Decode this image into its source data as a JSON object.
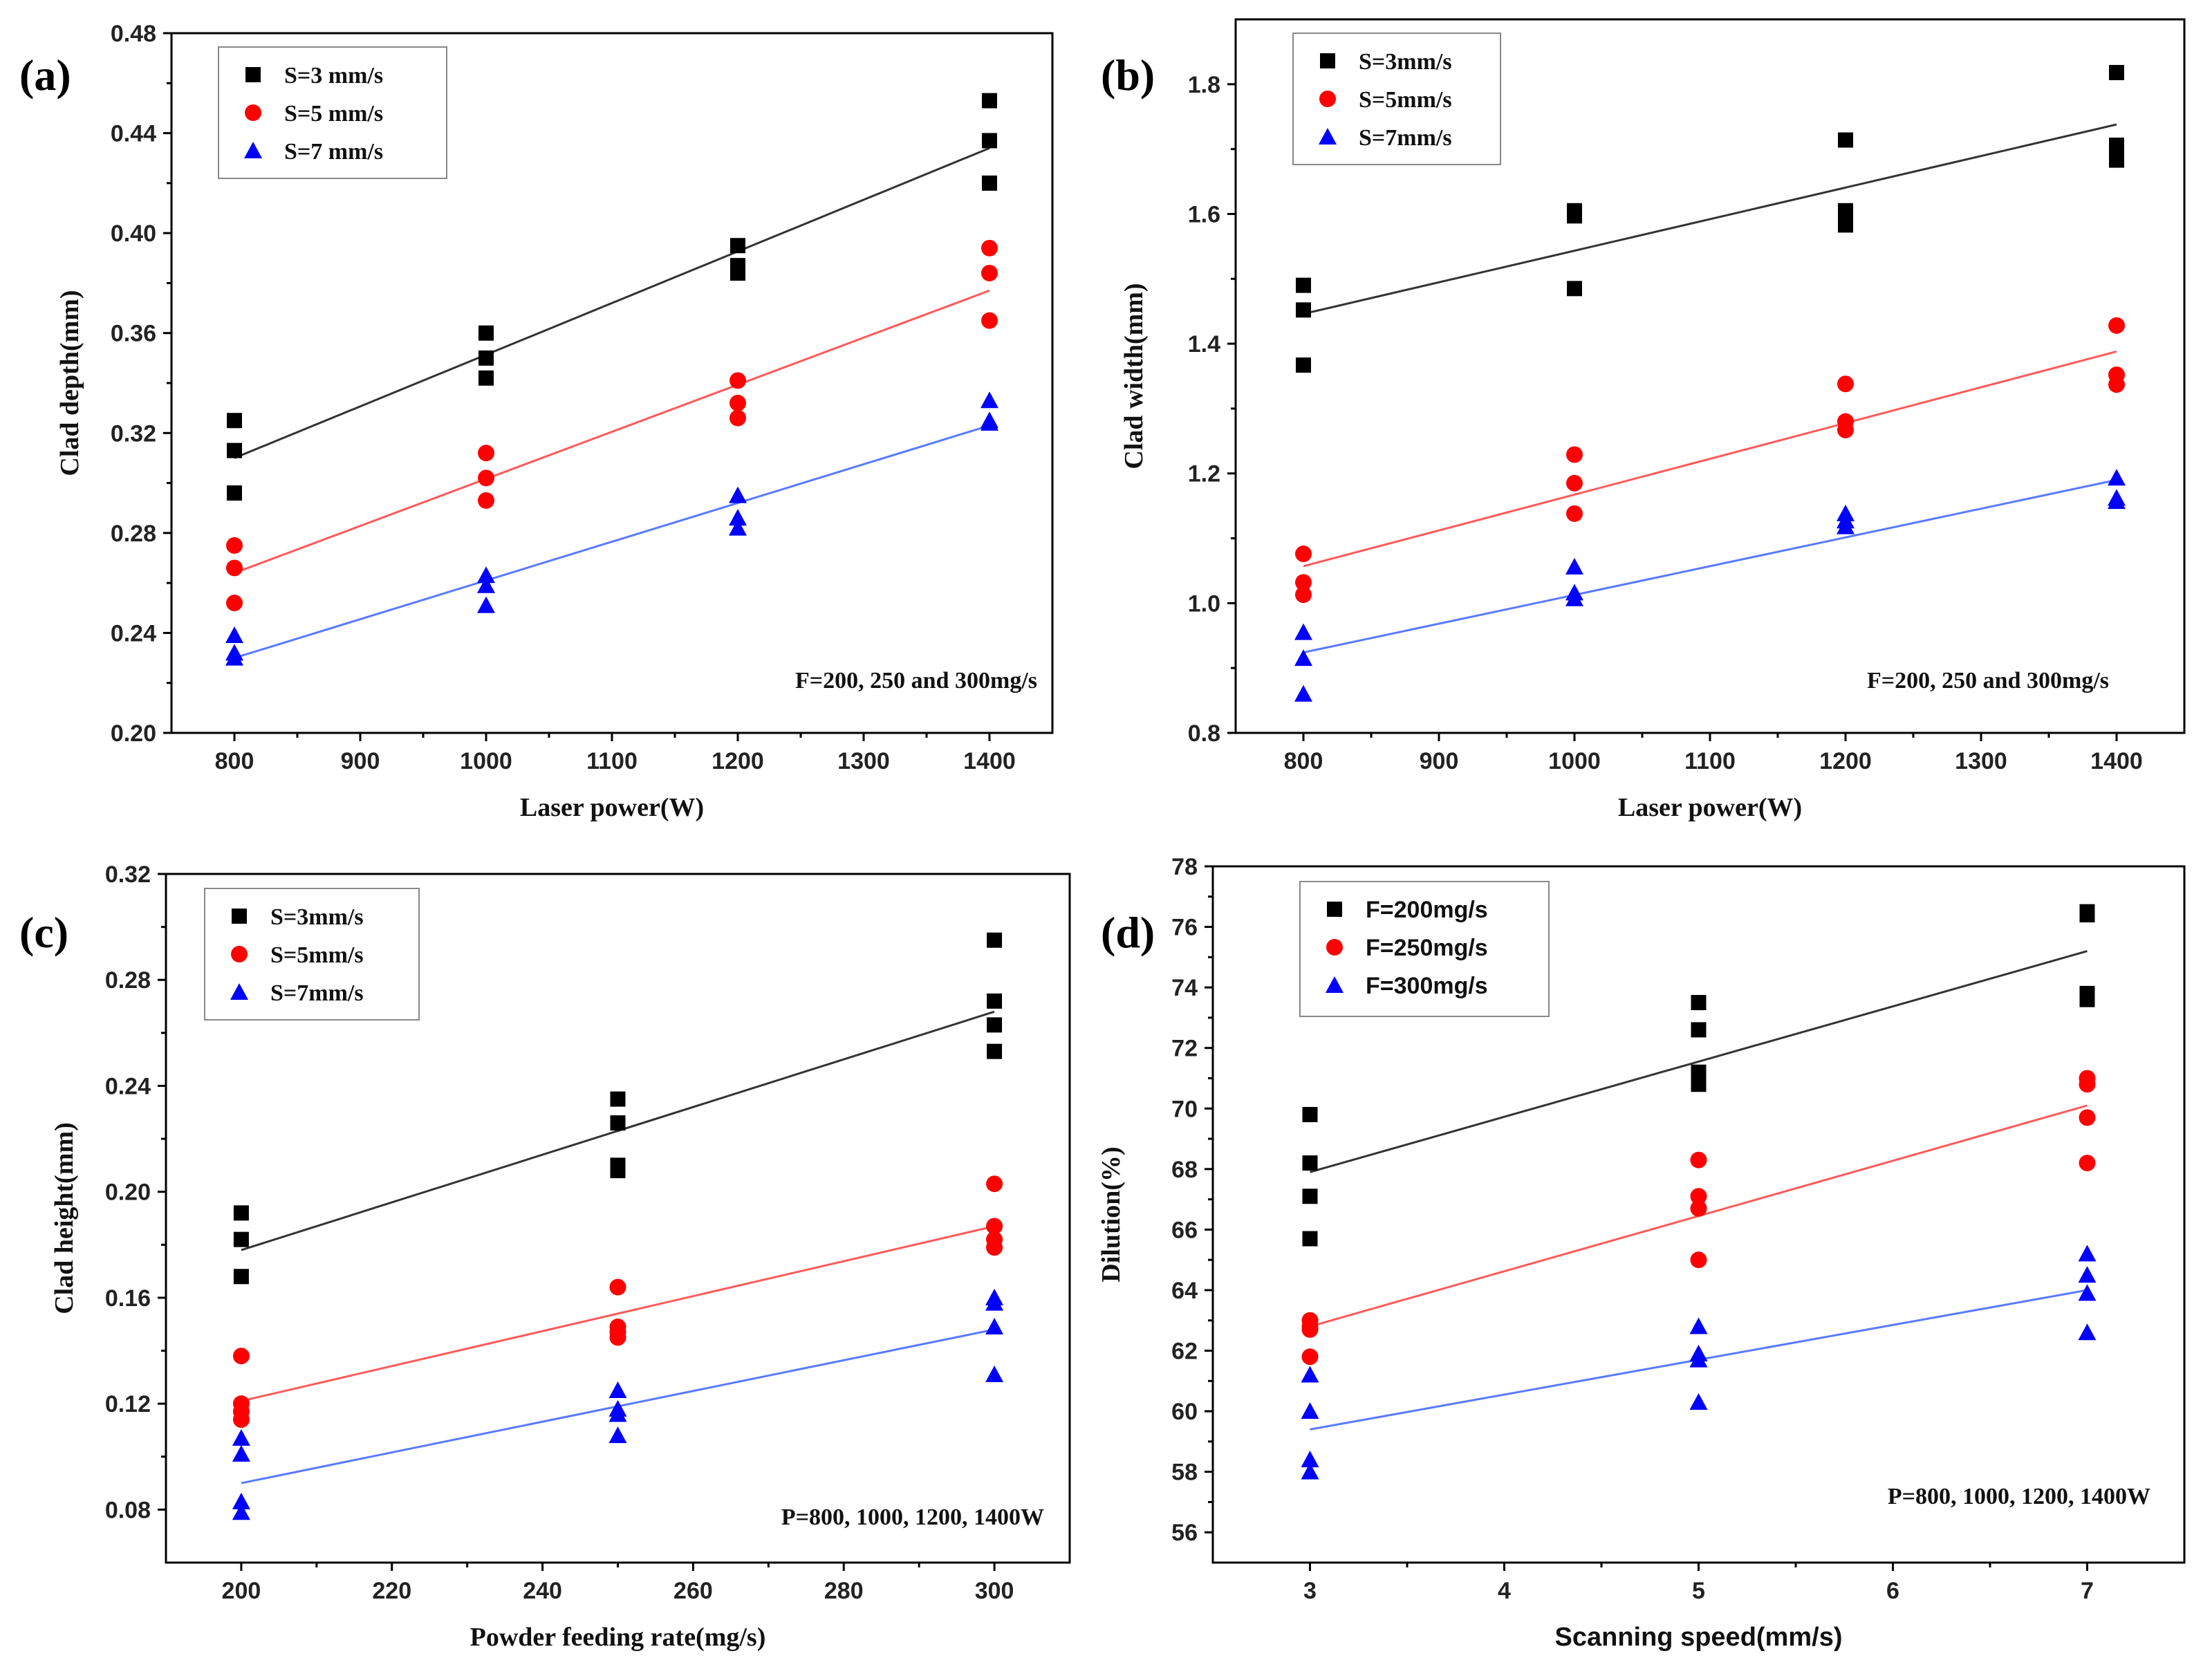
{
  "colors": {
    "s1": "#000000",
    "s2": "#ff0000",
    "s3": "#0000ff",
    "fit1": "#333333",
    "fit2": "#ff5a5a",
    "fit3": "#5a7aff"
  },
  "chart_data": [
    {
      "type": "scatter",
      "panel": "(a)",
      "xlabel": "Laser power(W)",
      "ylabel": "Clad depth(mm)",
      "xlim": [
        750,
        1450
      ],
      "ylim": [
        0.2,
        0.48
      ],
      "xticks": [
        800,
        900,
        1000,
        1100,
        1200,
        1300,
        1400
      ],
      "yticks": [
        0.2,
        0.24,
        0.28,
        0.32,
        0.36,
        0.4,
        0.44,
        0.48
      ],
      "ytick_decimals": 2,
      "annotation": "F=200, 250 and 300mg/s",
      "legend_position": "top-left",
      "series": [
        {
          "name": "S=3 mm/s",
          "marker": "square",
          "points": [
            [
              800,
              0.325
            ],
            [
              800,
              0.313
            ],
            [
              800,
              0.296
            ],
            [
              1000,
              0.36
            ],
            [
              1000,
              0.35
            ],
            [
              1000,
              0.342
            ],
            [
              1200,
              0.395
            ],
            [
              1200,
              0.387
            ],
            [
              1200,
              0.384
            ],
            [
              1400,
              0.453
            ],
            [
              1400,
              0.437
            ],
            [
              1400,
              0.42
            ]
          ],
          "fit": [
            [
              800,
              0.31
            ],
            [
              1400,
              0.434
            ]
          ]
        },
        {
          "name": "S=5 mm/s",
          "marker": "circle",
          "points": [
            [
              800,
              0.275
            ],
            [
              800,
              0.266
            ],
            [
              800,
              0.252
            ],
            [
              1000,
              0.312
            ],
            [
              1000,
              0.302
            ],
            [
              1000,
              0.293
            ],
            [
              1200,
              0.341
            ],
            [
              1200,
              0.332
            ],
            [
              1200,
              0.326
            ],
            [
              1400,
              0.394
            ],
            [
              1400,
              0.384
            ],
            [
              1400,
              0.365
            ]
          ],
          "fit": [
            [
              800,
              0.264
            ],
            [
              1400,
              0.377
            ]
          ]
        },
        {
          "name": "S=7 mm/s",
          "marker": "triangle",
          "points": [
            [
              800,
              0.239
            ],
            [
              800,
              0.232
            ],
            [
              800,
              0.23
            ],
            [
              1000,
              0.263
            ],
            [
              1000,
              0.259
            ],
            [
              1000,
              0.251
            ],
            [
              1200,
              0.295
            ],
            [
              1200,
              0.286
            ],
            [
              1200,
              0.282
            ],
            [
              1400,
              0.333
            ],
            [
              1400,
              0.325
            ],
            [
              1400,
              0.324
            ]
          ],
          "fit": [
            [
              800,
              0.23
            ],
            [
              1400,
              0.323
            ]
          ]
        }
      ]
    },
    {
      "type": "scatter",
      "panel": "(b)",
      "xlabel": "Laser power(W)",
      "ylabel": "Clad width(mm)",
      "xlim": [
        750,
        1450
      ],
      "ylim": [
        0.8,
        1.9
      ],
      "xticks": [
        800,
        900,
        1000,
        1100,
        1200,
        1300,
        1400
      ],
      "yticks": [
        0.8,
        1.0,
        1.2,
        1.4,
        1.6,
        1.8
      ],
      "ytick_decimals": 1,
      "annotation": "F=200, 250 and 300mg/s",
      "legend_position": "top-left",
      "series": [
        {
          "name": "S=3mm/s",
          "marker": "square",
          "points": [
            [
              800,
              1.49
            ],
            [
              800,
              1.452
            ],
            [
              800,
              1.367
            ],
            [
              1000,
              1.605
            ],
            [
              1000,
              1.597
            ],
            [
              1000,
              1.485
            ],
            [
              1200,
              1.714
            ],
            [
              1200,
              1.605
            ],
            [
              1200,
              1.583
            ],
            [
              1400,
              1.818
            ],
            [
              1400,
              1.706
            ],
            [
              1400,
              1.683
            ]
          ],
          "fit": [
            [
              800,
              1.446
            ],
            [
              1400,
              1.738
            ]
          ]
        },
        {
          "name": "S=5mm/s",
          "marker": "circle",
          "points": [
            [
              800,
              1.076
            ],
            [
              800,
              1.032
            ],
            [
              800,
              1.013
            ],
            [
              1000,
              1.229
            ],
            [
              1000,
              1.185
            ],
            [
              1000,
              1.138
            ],
            [
              1200,
              1.338
            ],
            [
              1200,
              1.28
            ],
            [
              1200,
              1.267
            ],
            [
              1400,
              1.428
            ],
            [
              1400,
              1.352
            ],
            [
              1400,
              1.337
            ]
          ],
          "fit": [
            [
              800,
              1.057
            ],
            [
              1400,
              1.388
            ]
          ]
        },
        {
          "name": "S=7mm/s",
          "marker": "triangle",
          "points": [
            [
              800,
              0.955
            ],
            [
              800,
              0.915
            ],
            [
              800,
              0.86
            ],
            [
              1000,
              1.056
            ],
            [
              1000,
              1.016
            ],
            [
              1000,
              1.007
            ],
            [
              1200,
              1.138
            ],
            [
              1200,
              1.127
            ],
            [
              1200,
              1.118
            ],
            [
              1400,
              1.193
            ],
            [
              1400,
              1.162
            ],
            [
              1400,
              1.157
            ]
          ],
          "fit": [
            [
              800,
              0.924
            ],
            [
              1400,
              1.19
            ]
          ]
        }
      ]
    },
    {
      "type": "scatter",
      "panel": "(c)",
      "xlabel": "Powder feeding rate(mg/s)",
      "ylabel": "Clad height(mm)",
      "xlim": [
        190,
        310
      ],
      "ylim": [
        0.06,
        0.32
      ],
      "xticks": [
        200,
        220,
        240,
        260,
        280,
        300
      ],
      "yticks": [
        0.08,
        0.12,
        0.16,
        0.2,
        0.24,
        0.28,
        0.32
      ],
      "ytick_decimals": 2,
      "annotation": "P=800, 1000, 1200, 1400W",
      "legend_position": "top-left",
      "series": [
        {
          "name": "S=3mm/s",
          "marker": "square",
          "points": [
            [
              200,
              0.192
            ],
            [
              200,
              0.182
            ],
            [
              200,
              0.168
            ],
            [
              250,
              0.235
            ],
            [
              250,
              0.226
            ],
            [
              250,
              0.21
            ],
            [
              250,
              0.208
            ],
            [
              300,
              0.295
            ],
            [
              300,
              0.272
            ],
            [
              300,
              0.263
            ],
            [
              300,
              0.253
            ]
          ],
          "fit": [
            [
              200,
              0.178
            ],
            [
              300,
              0.268
            ]
          ]
        },
        {
          "name": "S=5mm/s",
          "marker": "circle",
          "points": [
            [
              200,
              0.138
            ],
            [
              200,
              0.12
            ],
            [
              200,
              0.117
            ],
            [
              200,
              0.114
            ],
            [
              250,
              0.164
            ],
            [
              250,
              0.149
            ],
            [
              250,
              0.147
            ],
            [
              250,
              0.145
            ],
            [
              300,
              0.203
            ],
            [
              300,
              0.187
            ],
            [
              300,
              0.182
            ],
            [
              300,
              0.179
            ]
          ],
          "fit": [
            [
              200,
              0.121
            ],
            [
              300,
              0.187
            ]
          ]
        },
        {
          "name": "S=7mm/s",
          "marker": "triangle",
          "points": [
            [
              200,
              0.107
            ],
            [
              200,
              0.101
            ],
            [
              200,
              0.083
            ],
            [
              200,
              0.079
            ],
            [
              250,
              0.125
            ],
            [
              250,
              0.118
            ],
            [
              250,
              0.116
            ],
            [
              250,
              0.108
            ],
            [
              300,
              0.16
            ],
            [
              300,
              0.158
            ],
            [
              300,
              0.149
            ],
            [
              300,
              0.131
            ]
          ],
          "fit": [
            [
              200,
              0.09
            ],
            [
              300,
              0.148
            ]
          ]
        }
      ]
    },
    {
      "type": "scatter",
      "panel": "(d)",
      "xlabel": "Scanning speed(mm/s)",
      "ylabel": "Dilution(%)",
      "xlim": [
        2.5,
        7.5
      ],
      "ylim": [
        55,
        78
      ],
      "xticks": [
        3,
        4,
        5,
        6,
        7
      ],
      "yticks": [
        56,
        58,
        60,
        62,
        64,
        66,
        68,
        70,
        72,
        74,
        76,
        78
      ],
      "ytick_decimals": 0,
      "annotation": "P=800, 1000, 1200, 1400W",
      "legend_position": "top-left",
      "series": [
        {
          "name": "F=200mg/s",
          "marker": "square",
          "points": [
            [
              3,
              69.8
            ],
            [
              3,
              68.2
            ],
            [
              3,
              67.1
            ],
            [
              3,
              65.7
            ],
            [
              5,
              73.5
            ],
            [
              5,
              72.6
            ],
            [
              5,
              71.2
            ],
            [
              5,
              70.8
            ],
            [
              7,
              76.5
            ],
            [
              7,
              76.4
            ],
            [
              7,
              73.8
            ],
            [
              7,
              73.6
            ]
          ],
          "fit": [
            [
              3,
              67.9
            ],
            [
              7,
              75.2
            ]
          ]
        },
        {
          "name": "F=250mg/s",
          "marker": "circle",
          "points": [
            [
              3,
              63.0
            ],
            [
              3,
              62.8
            ],
            [
              3,
              62.7
            ],
            [
              3,
              61.8
            ],
            [
              5,
              68.3
            ],
            [
              5,
              67.1
            ],
            [
              5,
              66.7
            ],
            [
              5,
              65.0
            ],
            [
              7,
              71.0
            ],
            [
              7,
              70.8
            ],
            [
              7,
              69.7
            ],
            [
              7,
              68.2
            ]
          ],
          "fit": [
            [
              3,
              62.8
            ],
            [
              7,
              70.1
            ]
          ]
        },
        {
          "name": "F=300mg/s",
          "marker": "triangle",
          "points": [
            [
              3,
              61.2
            ],
            [
              3,
              60.0
            ],
            [
              3,
              58.4
            ],
            [
              3,
              58.0
            ],
            [
              5,
              62.8
            ],
            [
              5,
              61.9
            ],
            [
              5,
              61.7
            ],
            [
              5,
              60.3
            ],
            [
              7,
              65.2
            ],
            [
              7,
              64.5
            ],
            [
              7,
              63.9
            ],
            [
              7,
              62.6
            ]
          ],
          "fit": [
            [
              3,
              59.4
            ],
            [
              7,
              64.0
            ]
          ]
        }
      ]
    }
  ]
}
